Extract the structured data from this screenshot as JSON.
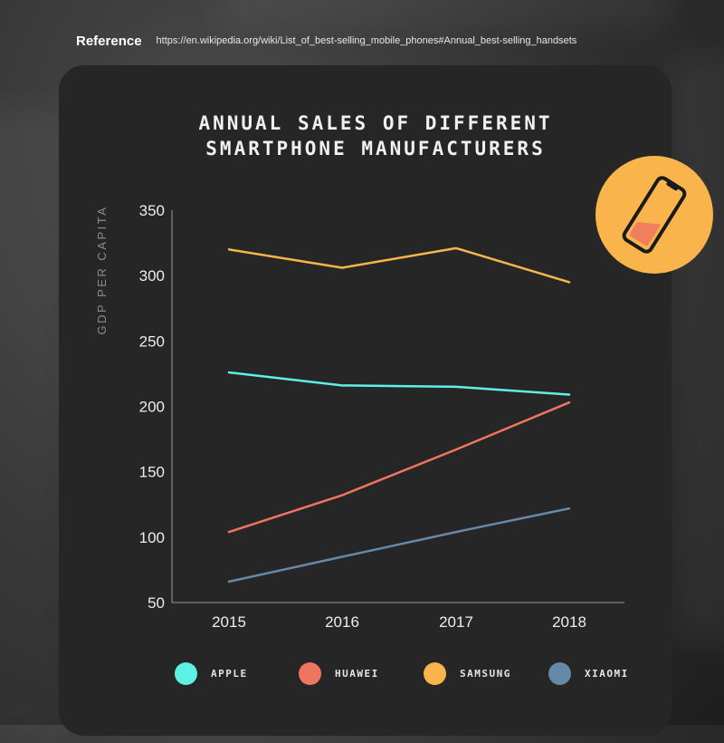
{
  "reference": {
    "label": "Reference",
    "url": "https://en.wikipedia.org/wiki/List_of_best-selling_mobile_phones#Annual_best-selling_handsets"
  },
  "badge": {
    "icon": "smartphone-icon",
    "color": "#f9b54c"
  },
  "chart_data": {
    "type": "line",
    "title": "Annual sales of different smartphone manufacturers",
    "title_lines": [
      "Annual sales of different",
      "smartphone manufacturers"
    ],
    "xlabel": "",
    "ylabel": "GDP PER CAPITA",
    "categories": [
      "2015",
      "2016",
      "2017",
      "2018"
    ],
    "ylim": [
      50,
      350
    ],
    "yticks": [
      50,
      100,
      150,
      200,
      250,
      300,
      350
    ],
    "grid": false,
    "legend_position": "bottom",
    "series": [
      {
        "name": "APPLE",
        "color": "#5ef2e6",
        "values": [
          226,
          216,
          215,
          209
        ]
      },
      {
        "name": "HUAWEI",
        "color": "#f07560",
        "values": [
          104,
          132,
          167,
          203
        ]
      },
      {
        "name": "SAMSUNG",
        "color": "#f9b54c",
        "values": [
          320,
          306,
          321,
          295
        ]
      },
      {
        "name": "XIAOMI",
        "color": "#6689a8",
        "values": [
          66,
          85,
          104,
          122
        ]
      }
    ]
  }
}
